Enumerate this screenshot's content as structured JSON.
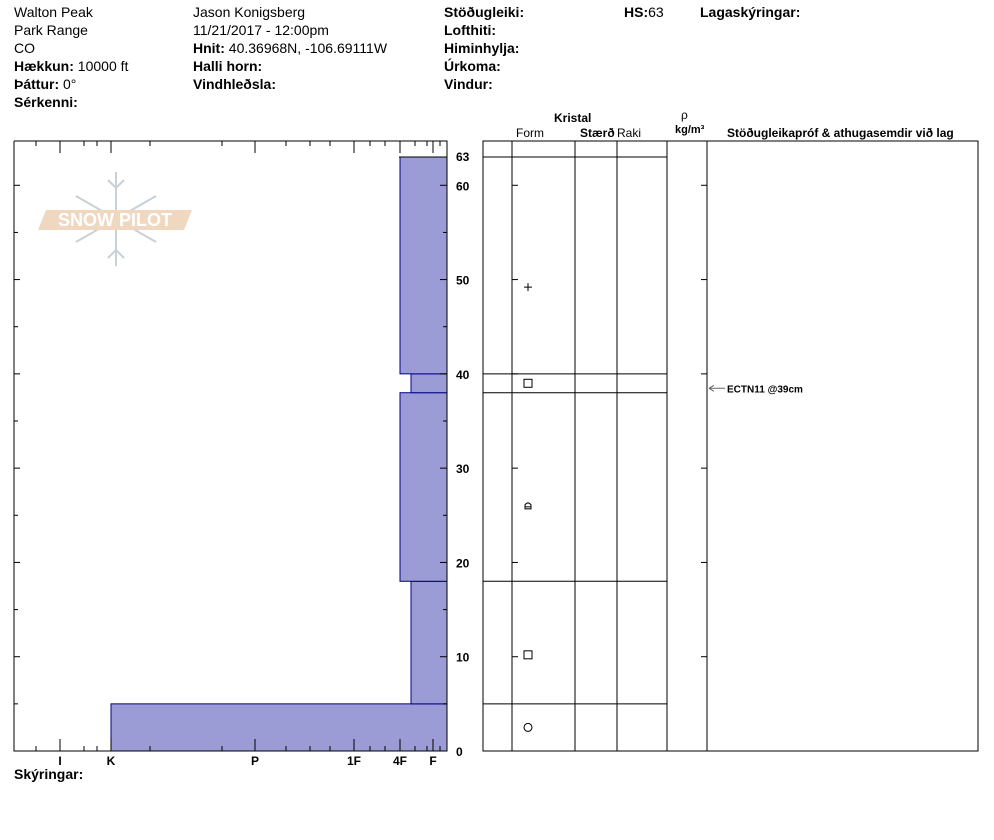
{
  "header": {
    "location": "Walton Peak",
    "range": "Park Range",
    "state": "CO",
    "elevation_label": "Hækkun:",
    "elevation_value": "10000 ft",
    "aspect_label": "Þáttur:",
    "aspect_value": "0°",
    "features_label": "Sérkenni:",
    "observer": "Jason Konigsberg",
    "datetime": "11/21/2017 - 12:00pm",
    "coords_label": "Hnit:",
    "coords_value": "40.36968N, -106.69111W",
    "slope_label": "Halli horn:",
    "wind_loading_label": "Vindhleðsla:",
    "stability_label": "Stöðugleiki:",
    "air_temp_label": "Lofthiti:",
    "sky_label": "Himinhylja:",
    "precip_label": "Úrkoma:",
    "wind_label": "Vindur:",
    "hs_label": "HS:",
    "hs_value": "63",
    "layer_notes_label": "Lagaskýringar:"
  },
  "footer": {
    "notes_label": "Skýringar:"
  },
  "logo": {
    "text": "SNOW PILOT",
    "colors": {
      "band": "#f0d8c0",
      "flake": "#c8d0d8"
    }
  },
  "table_headers": {
    "crystal": "Kristal",
    "form": "Form",
    "size": "Stærð",
    "moisture": "Raki",
    "density_symbol": "ρ",
    "density_unit": "kg/m³",
    "comments": "Stöðugleikapróf & athugasemdir við lag"
  },
  "stability_tests": [
    {
      "depth_cm": 39,
      "text": "ECTN11 @39cm"
    }
  ],
  "chart_data": {
    "type": "bar",
    "orientation": "horizontal",
    "xlabel_ticks": [
      "I",
      "K",
      "P",
      "1F",
      "4F",
      "F"
    ],
    "ylim": [
      0,
      63
    ],
    "y_ticks": [
      0,
      10,
      20,
      30,
      40,
      50,
      60,
      63
    ],
    "bar_color": "#9b9bd6",
    "bar_edge_color": "#00008b",
    "layers": [
      {
        "bottom": 0,
        "top": 5,
        "hardness": "K",
        "form": "melt-forms-circle"
      },
      {
        "bottom": 5,
        "top": 18,
        "hardness": "F+",
        "form": "faceted-square"
      },
      {
        "bottom": 18,
        "top": 38,
        "hardness": "4F",
        "form": "rounding-faceted"
      },
      {
        "bottom": 38,
        "top": 40,
        "hardness": "F+",
        "form": "faceted-square"
      },
      {
        "bottom": 40,
        "top": 63,
        "hardness": "4F",
        "form": "precipitation-plus"
      }
    ]
  }
}
